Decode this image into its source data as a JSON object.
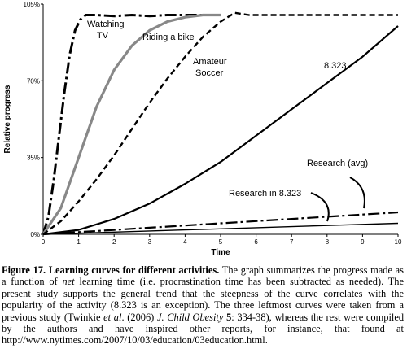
{
  "chart_data": {
    "type": "line",
    "xlabel": "Time",
    "ylabel": "Relative progress",
    "x_ticks": [
      "0",
      "1",
      "2",
      "3",
      "4",
      "5",
      "6",
      "7",
      "8",
      "9",
      "10"
    ],
    "y_ticks": [
      "0%",
      "35%",
      "70%",
      "105%"
    ],
    "xlim": [
      0,
      10
    ],
    "ylim": [
      0,
      105
    ],
    "grid": false,
    "legend": "none (curves labeled inline)",
    "series": [
      {
        "name": "Watching TV",
        "style": "dash-dot",
        "color": "#000000",
        "x": [
          0,
          0.15,
          0.3,
          0.45,
          0.6,
          0.75,
          0.9,
          1.05,
          1.2,
          1.5,
          2.0,
          2.5,
          3.0,
          3.5,
          4.0,
          5.0
        ],
        "y": [
          0,
          8,
          25,
          45,
          65,
          82,
          93,
          98,
          100,
          100,
          99.5,
          100,
          99.5,
          100,
          100,
          100
        ]
      },
      {
        "name": "Riding a bike",
        "style": "solid",
        "color": "#888888",
        "x": [
          0,
          0.5,
          1.0,
          1.5,
          2.0,
          2.5,
          3.0,
          3.5,
          4.0,
          4.5,
          5.0
        ],
        "y": [
          0,
          12,
          35,
          58,
          75,
          86,
          93,
          97,
          99,
          100,
          100
        ]
      },
      {
        "name": "Amateur Soccer",
        "style": "dashed",
        "color": "#000000",
        "x": [
          0,
          0.5,
          1.0,
          1.5,
          2.0,
          2.5,
          3.0,
          3.5,
          4.0,
          4.5,
          5.0,
          5.4,
          5.8,
          6.5,
          7.0,
          10.0
        ],
        "y": [
          0,
          6,
          15,
          25,
          36,
          48,
          60,
          71,
          81,
          90,
          97,
          101,
          100,
          100,
          100,
          100
        ]
      },
      {
        "name": "8.323",
        "style": "solid",
        "color": "#000000",
        "x": [
          0,
          1,
          2,
          3,
          4,
          5,
          6,
          7,
          8,
          9,
          10
        ],
        "y": [
          0,
          2,
          7,
          14,
          23,
          33,
          45,
          57,
          69,
          81,
          95
        ]
      },
      {
        "name": "Research (avg)",
        "style": "dash-dot",
        "color": "#000000",
        "x": [
          0,
          2,
          4,
          6,
          8,
          10
        ],
        "y": [
          0,
          2,
          4,
          6,
          8,
          10
        ]
      },
      {
        "name": "Research in 8.323",
        "style": "solid",
        "color": "#000000",
        "x": [
          0,
          2,
          4,
          6,
          8,
          10
        ],
        "y": [
          0,
          1,
          2,
          3,
          4,
          5
        ]
      }
    ],
    "annotations": [
      {
        "text": "Watching TV",
        "lines": [
          "Watching",
          "TV"
        ]
      },
      {
        "text": "Riding a bike",
        "lines": [
          "Riding a bike"
        ]
      },
      {
        "text": "Amateur Soccer",
        "lines": [
          "Amateur",
          "Soccer"
        ]
      },
      {
        "text": "8.323",
        "lines": [
          "8.323"
        ]
      },
      {
        "text": "Research (avg)",
        "lines": [
          "Research (avg)"
        ]
      },
      {
        "text": "Research in 8.323",
        "lines": [
          "Research in 8.323"
        ]
      }
    ]
  },
  "caption": {
    "figure_label": "Figure 17.",
    "title": "Learning curves for different activities.",
    "text_1": " The graph summarizes the progress made as a function of ",
    "net": "net",
    "text_2": " learning time (i.e. procrastination time has been subtracted as needed). The present study supports the general trend that the steepness of the curve correlates with the popularity of the activity (8.323 is an exception). The three leftmost curves were taken from a previous study (Twinkie ",
    "etal": "et al",
    "text_3": ". (2006) ",
    "journal": "J. Child Obesity",
    "volume": " 5",
    "text_4": ": 334-38), whereas the rest were compiled by the authors and have inspired other reports, for instance, that found at http://www.nytimes.com/2007/10/03/education/03education.html."
  }
}
